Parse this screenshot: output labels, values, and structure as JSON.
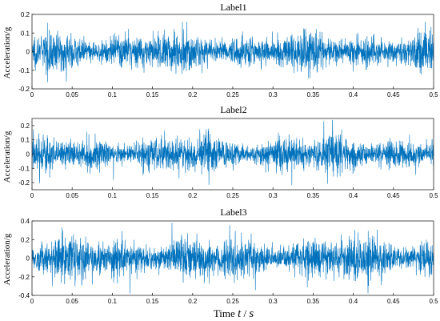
{
  "chart_data": [
    {
      "type": "line",
      "title": "Label1",
      "ylabel": "Acceleration/g",
      "xlim": [
        0,
        0.5
      ],
      "ylim": [
        -0.2,
        0.2
      ],
      "xticks": [
        "0",
        "0.05",
        "0.1",
        "0.15",
        "0.2",
        "0.25",
        "0.3",
        "0.35",
        "0.4",
        "0.45",
        "0.5"
      ],
      "yticks": [
        "-0.2",
        "-0.1",
        "0",
        "0.1",
        "0.2"
      ],
      "ytick_values": [
        -0.2,
        -0.1,
        0,
        0.1,
        0.2
      ],
      "signal": {
        "samples": 2500,
        "base_amplitude": 0.04,
        "peak": 0.16,
        "min": -0.19
      },
      "color": "#0072BD"
    },
    {
      "type": "line",
      "title": "Label2",
      "ylabel": "Acceleration/g",
      "xlim": [
        0,
        0.5
      ],
      "ylim": [
        -0.25,
        0.25
      ],
      "xticks": [
        "0",
        "0.05",
        "0.1",
        "0.15",
        "0.2",
        "0.25",
        "0.3",
        "0.35",
        "0.4",
        "0.45",
        "0.5"
      ],
      "yticks": [
        "-0.2",
        "-0.1",
        "0",
        "0.1",
        "0.2"
      ],
      "ytick_values": [
        -0.2,
        -0.1,
        0,
        0.1,
        0.2
      ],
      "signal": {
        "samples": 2500,
        "base_amplitude": 0.05,
        "peak": 0.25,
        "min": -0.23
      },
      "color": "#0072BD"
    },
    {
      "type": "line",
      "title": "Label3",
      "ylabel": "Acceleration/g",
      "xlim": [
        0,
        0.5
      ],
      "ylim": [
        -0.4,
        0.4
      ],
      "xticks": [
        "0",
        "0.05",
        "0.1",
        "0.15",
        "0.2",
        "0.25",
        "0.3",
        "0.35",
        "0.4",
        "0.45",
        "0.5"
      ],
      "yticks": [
        "-0.4",
        "-0.2",
        "0",
        "0.2",
        "0.4"
      ],
      "ytick_values": [
        -0.4,
        -0.2,
        0,
        0.2,
        0.4
      ],
      "signal": {
        "samples": 2500,
        "base_amplitude": 0.09,
        "peak": 0.38,
        "min": -0.38
      },
      "color": "#0072BD"
    }
  ],
  "xlabel": {
    "text": "Time ",
    "var": "t",
    "sep": " / ",
    "unit": "s"
  }
}
